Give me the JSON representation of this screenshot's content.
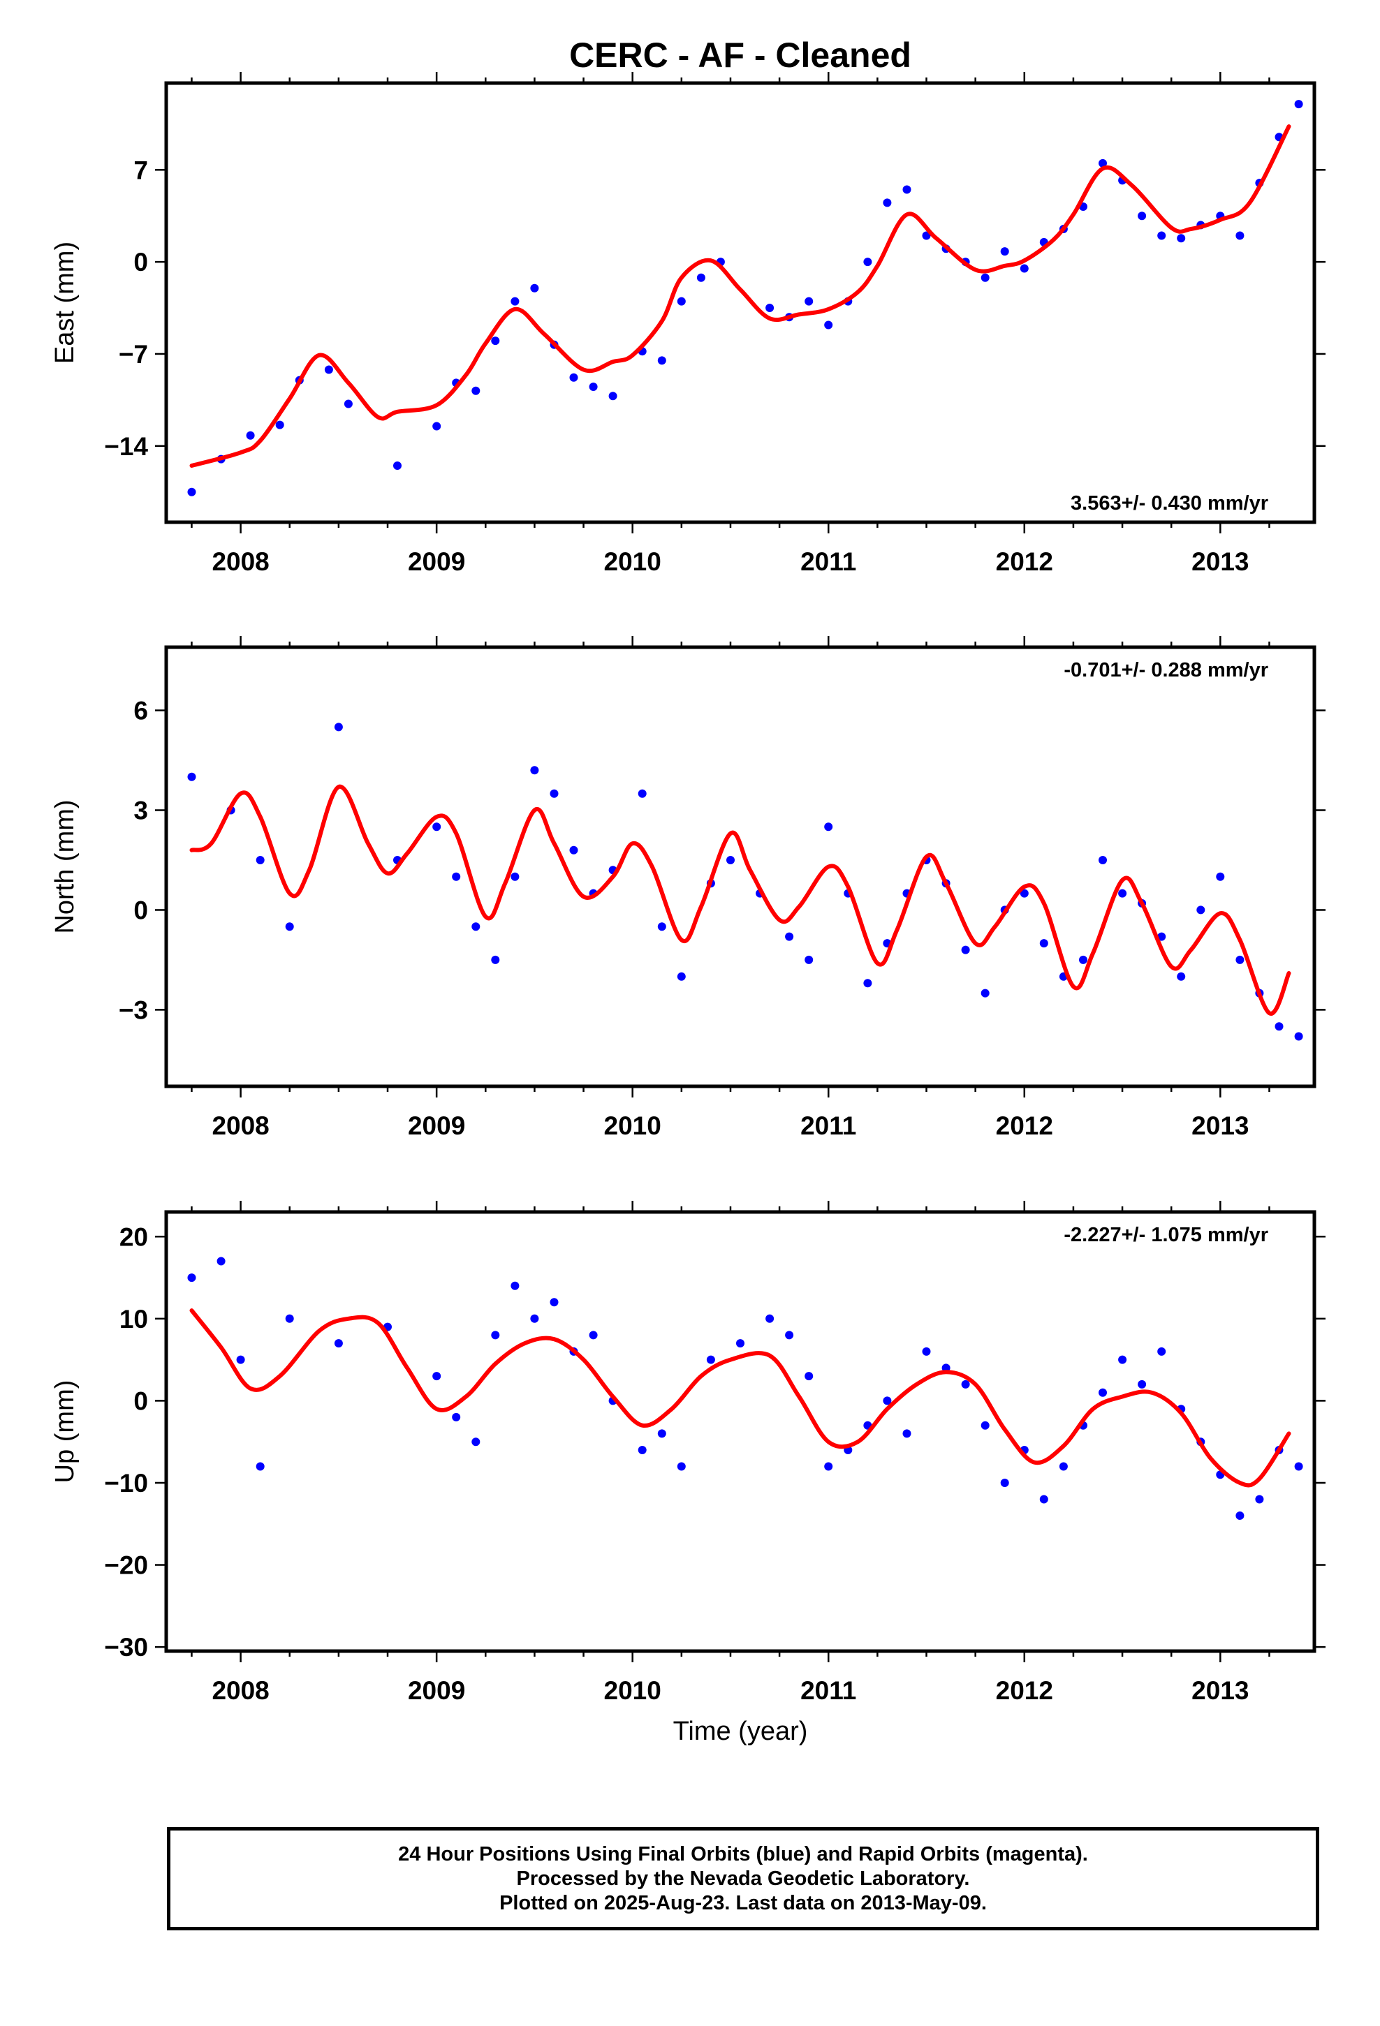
{
  "title": "CERC  - AF - Cleaned",
  "xlabel": "Time (year)",
  "colors": {
    "data": "#0000ff",
    "model": "#ff0000",
    "frame": "#000000"
  },
  "caption": {
    "line1": "24 Hour Positions Using Final Orbits (blue) and Rapid Orbits (magenta).",
    "line2": "Processed by the Nevada Geodetic Laboratory.",
    "line3": "Plotted on 2025-Aug-23. Last data on 2013-May-09."
  },
  "chart_data": [
    {
      "type": "scatter",
      "ylabel": "East (mm)",
      "rate_label": "3.563+/- 0.430 mm/yr",
      "rate_position": "bottom-right",
      "xlim": [
        2007.62,
        2013.48
      ],
      "ylim": [
        -19.8,
        13.6
      ],
      "x_ticks": [
        "2008",
        "2009",
        "2010",
        "2011",
        "2012",
        "2013"
      ],
      "y_ticks": [
        7,
        0,
        -7,
        -14
      ],
      "y_tick_labels": [
        "7",
        "0",
        "−7",
        "−14"
      ],
      "model_fit": {
        "name": "trend + seasonal fit",
        "x": [
          2007.75,
          2008.0,
          2008.1,
          2008.25,
          2008.4,
          2008.55,
          2008.7,
          2008.8,
          2009.0,
          2009.15,
          2009.25,
          2009.4,
          2009.55,
          2009.75,
          2009.9,
          2010.0,
          2010.15,
          2010.25,
          2010.4,
          2010.55,
          2010.7,
          2010.85,
          2011.0,
          2011.15,
          2011.25,
          2011.4,
          2011.55,
          2011.75,
          2011.9,
          2012.0,
          2012.15,
          2012.25,
          2012.4,
          2012.55,
          2012.75,
          2012.85,
          2013.0,
          2013.15,
          2013.35
        ],
        "y": [
          -15.5,
          -14.5,
          -13.6,
          -10.4,
          -7.1,
          -9.2,
          -11.8,
          -11.4,
          -10.9,
          -8.6,
          -6.2,
          -3.6,
          -5.5,
          -8.2,
          -7.6,
          -7.1,
          -4.5,
          -1.2,
          0.1,
          -2.1,
          -4.3,
          -4.0,
          -3.6,
          -2.3,
          -0.3,
          3.6,
          1.8,
          -0.6,
          -0.3,
          0.1,
          1.7,
          3.6,
          7.1,
          5.8,
          2.6,
          2.5,
          3.2,
          4.5,
          10.3
        ]
      },
      "points": {
        "name": "Final Orbits",
        "x": [
          2007.75,
          2007.9,
          2008.05,
          2008.2,
          2008.3,
          2008.45,
          2008.55,
          2008.8,
          2009.0,
          2009.1,
          2009.2,
          2009.3,
          2009.4,
          2009.5,
          2009.6,
          2009.7,
          2009.8,
          2009.9,
          2010.05,
          2010.15,
          2010.25,
          2010.35,
          2010.45,
          2010.7,
          2010.8,
          2010.9,
          2011.0,
          2011.1,
          2011.2,
          2011.3,
          2011.4,
          2011.5,
          2011.6,
          2011.7,
          2011.8,
          2011.9,
          2012.0,
          2012.1,
          2012.2,
          2012.3,
          2012.4,
          2012.5,
          2012.6,
          2012.7,
          2012.8,
          2012.9,
          2013.0,
          2013.1,
          2013.2,
          2013.3,
          2013.4
        ],
        "y": [
          -17.5,
          -15.0,
          -13.2,
          -12.4,
          -9.0,
          -8.2,
          -10.8,
          -15.5,
          -12.5,
          -9.2,
          -9.8,
          -6.0,
          -3.0,
          -2.0,
          -6.3,
          -8.8,
          -9.5,
          -10.2,
          -6.8,
          -7.5,
          -3.0,
          -1.2,
          0.0,
          -3.5,
          -4.2,
          -3.0,
          -4.8,
          -3.0,
          0.0,
          4.5,
          5.5,
          2.0,
          1.0,
          0.0,
          -1.2,
          0.8,
          -0.5,
          1.5,
          2.5,
          4.2,
          7.5,
          6.2,
          3.5,
          2.0,
          1.8,
          2.8,
          3.5,
          2.0,
          6.0,
          9.5,
          12.0
        ]
      }
    },
    {
      "type": "scatter",
      "ylabel": "North (mm)",
      "rate_label": "-0.701+/- 0.288 mm/yr",
      "rate_position": "top-right",
      "xlim": [
        2007.62,
        2013.48
      ],
      "ylim": [
        -5.3,
        7.9
      ],
      "x_ticks": [
        "2008",
        "2009",
        "2010",
        "2011",
        "2012",
        "2013"
      ],
      "y_ticks": [
        6,
        3,
        0,
        -3
      ],
      "y_tick_labels": [
        "6",
        "3",
        "0",
        "−3"
      ],
      "model_fit": {
        "name": "trend + seasonal fit",
        "x": [
          2007.75,
          2007.85,
          2008.0,
          2008.1,
          2008.25,
          2008.35,
          2008.5,
          2008.65,
          2008.75,
          2008.85,
          2009.0,
          2009.1,
          2009.25,
          2009.35,
          2009.5,
          2009.6,
          2009.75,
          2009.9,
          2010.0,
          2010.1,
          2010.25,
          2010.35,
          2010.5,
          2010.6,
          2010.75,
          2010.85,
          2011.0,
          2011.1,
          2011.25,
          2011.35,
          2011.5,
          2011.6,
          2011.75,
          2011.85,
          2012.0,
          2012.1,
          2012.25,
          2012.35,
          2012.5,
          2012.6,
          2012.75,
          2012.85,
          2013.0,
          2013.1,
          2013.25,
          2013.35
        ],
        "y": [
          1.8,
          2.0,
          3.5,
          2.8,
          0.5,
          1.2,
          3.7,
          2.0,
          1.1,
          1.7,
          2.8,
          2.3,
          -0.2,
          0.8,
          3.0,
          2.0,
          0.4,
          1.0,
          2.0,
          1.3,
          -0.9,
          0.1,
          2.3,
          1.2,
          -0.3,
          0.1,
          1.3,
          0.7,
          -1.6,
          -0.6,
          1.6,
          0.8,
          -1.0,
          -0.5,
          0.7,
          0.2,
          -2.3,
          -1.3,
          0.9,
          0.2,
          -1.7,
          -1.2,
          -0.1,
          -0.9,
          -3.1,
          -1.9
        ]
      },
      "points": {
        "name": "Final Orbits",
        "x": [
          2007.75,
          2007.95,
          2008.1,
          2008.25,
          2008.5,
          2008.8,
          2009.0,
          2009.1,
          2009.2,
          2009.3,
          2009.4,
          2009.5,
          2009.6,
          2009.7,
          2009.8,
          2009.9,
          2010.05,
          2010.15,
          2010.25,
          2010.4,
          2010.5,
          2010.65,
          2010.8,
          2010.9,
          2011.0,
          2011.1,
          2011.2,
          2011.3,
          2011.4,
          2011.5,
          2011.6,
          2011.7,
          2011.8,
          2011.9,
          2012.0,
          2012.1,
          2012.2,
          2012.3,
          2012.4,
          2012.5,
          2012.6,
          2012.7,
          2012.8,
          2012.9,
          2013.0,
          2013.1,
          2013.2,
          2013.3,
          2013.4
        ],
        "y": [
          4.0,
          3.0,
          1.5,
          -0.5,
          5.5,
          1.5,
          2.5,
          1.0,
          -0.5,
          -1.5,
          1.0,
          4.2,
          3.5,
          1.8,
          0.5,
          1.2,
          3.5,
          -0.5,
          -2.0,
          0.8,
          1.5,
          0.5,
          -0.8,
          -1.5,
          2.5,
          0.5,
          -2.2,
          -1.0,
          0.5,
          1.5,
          0.8,
          -1.2,
          -2.5,
          0.0,
          0.5,
          -1.0,
          -2.0,
          -1.5,
          1.5,
          0.5,
          0.2,
          -0.8,
          -2.0,
          0.0,
          1.0,
          -1.5,
          -2.5,
          -3.5,
          -3.8
        ]
      }
    },
    {
      "type": "scatter",
      "ylabel": "Up (mm)",
      "rate_label": "-2.227+/- 1.075 mm/yr",
      "rate_position": "top-right",
      "xlim": [
        2007.62,
        2013.48
      ],
      "ylim": [
        -30.5,
        23.0
      ],
      "x_ticks": [
        "2008",
        "2009",
        "2010",
        "2011",
        "2012",
        "2013"
      ],
      "y_ticks": [
        20,
        10,
        0,
        -10,
        -20,
        -30
      ],
      "y_tick_labels": [
        "20",
        "10",
        "0",
        "−10",
        "−20",
        "−30"
      ],
      "model_fit": {
        "name": "trend + seasonal fit",
        "x": [
          2007.75,
          2007.9,
          2008.05,
          2008.2,
          2008.4,
          2008.55,
          2008.7,
          2008.85,
          2009.0,
          2009.15,
          2009.3,
          2009.45,
          2009.6,
          2009.75,
          2009.9,
          2010.05,
          2010.2,
          2010.35,
          2010.5,
          2010.7,
          2010.85,
          2011.0,
          2011.15,
          2011.3,
          2011.45,
          2011.6,
          2011.75,
          2011.9,
          2012.05,
          2012.2,
          2012.35,
          2012.5,
          2012.65,
          2012.8,
          2012.95,
          2013.1,
          2013.2,
          2013.35
        ],
        "y": [
          11.0,
          6.5,
          1.5,
          3.0,
          8.5,
          10.0,
          9.5,
          4.0,
          -1.0,
          0.5,
          4.5,
          7.0,
          7.5,
          5.0,
          0.5,
          -3.0,
          -1.0,
          3.0,
          5.0,
          5.5,
          0.5,
          -5.0,
          -5.0,
          -1.0,
          2.0,
          3.5,
          2.0,
          -3.5,
          -7.5,
          -5.5,
          -1.0,
          0.5,
          1.0,
          -1.5,
          -7.0,
          -10.0,
          -9.5,
          -4.0
        ]
      },
      "points": {
        "name": "Final Orbits",
        "x": [
          2007.75,
          2007.9,
          2008.0,
          2008.1,
          2008.25,
          2008.5,
          2008.75,
          2009.0,
          2009.1,
          2009.2,
          2009.3,
          2009.4,
          2009.5,
          2009.6,
          2009.7,
          2009.8,
          2009.9,
          2010.05,
          2010.15,
          2010.25,
          2010.4,
          2010.55,
          2010.7,
          2010.8,
          2010.9,
          2011.0,
          2011.1,
          2011.2,
          2011.3,
          2011.4,
          2011.5,
          2011.6,
          2011.7,
          2011.8,
          2011.9,
          2012.0,
          2012.1,
          2012.2,
          2012.3,
          2012.4,
          2012.5,
          2012.6,
          2012.7,
          2012.8,
          2012.9,
          2013.0,
          2013.1,
          2013.2,
          2013.3,
          2013.4
        ],
        "y": [
          15.0,
          17.0,
          5.0,
          -8.0,
          10.0,
          7.0,
          9.0,
          3.0,
          -2.0,
          -5.0,
          8.0,
          14.0,
          10.0,
          12.0,
          6.0,
          8.0,
          0.0,
          -6.0,
          -4.0,
          -8.0,
          5.0,
          7.0,
          10.0,
          8.0,
          3.0,
          -8.0,
          -6.0,
          -3.0,
          0.0,
          -4.0,
          6.0,
          4.0,
          2.0,
          -3.0,
          -10.0,
          -6.0,
          -12.0,
          -8.0,
          -3.0,
          1.0,
          5.0,
          2.0,
          6.0,
          -1.0,
          -5.0,
          -9.0,
          -14.0,
          -12.0,
          -6.0,
          -8.0
        ]
      }
    }
  ]
}
